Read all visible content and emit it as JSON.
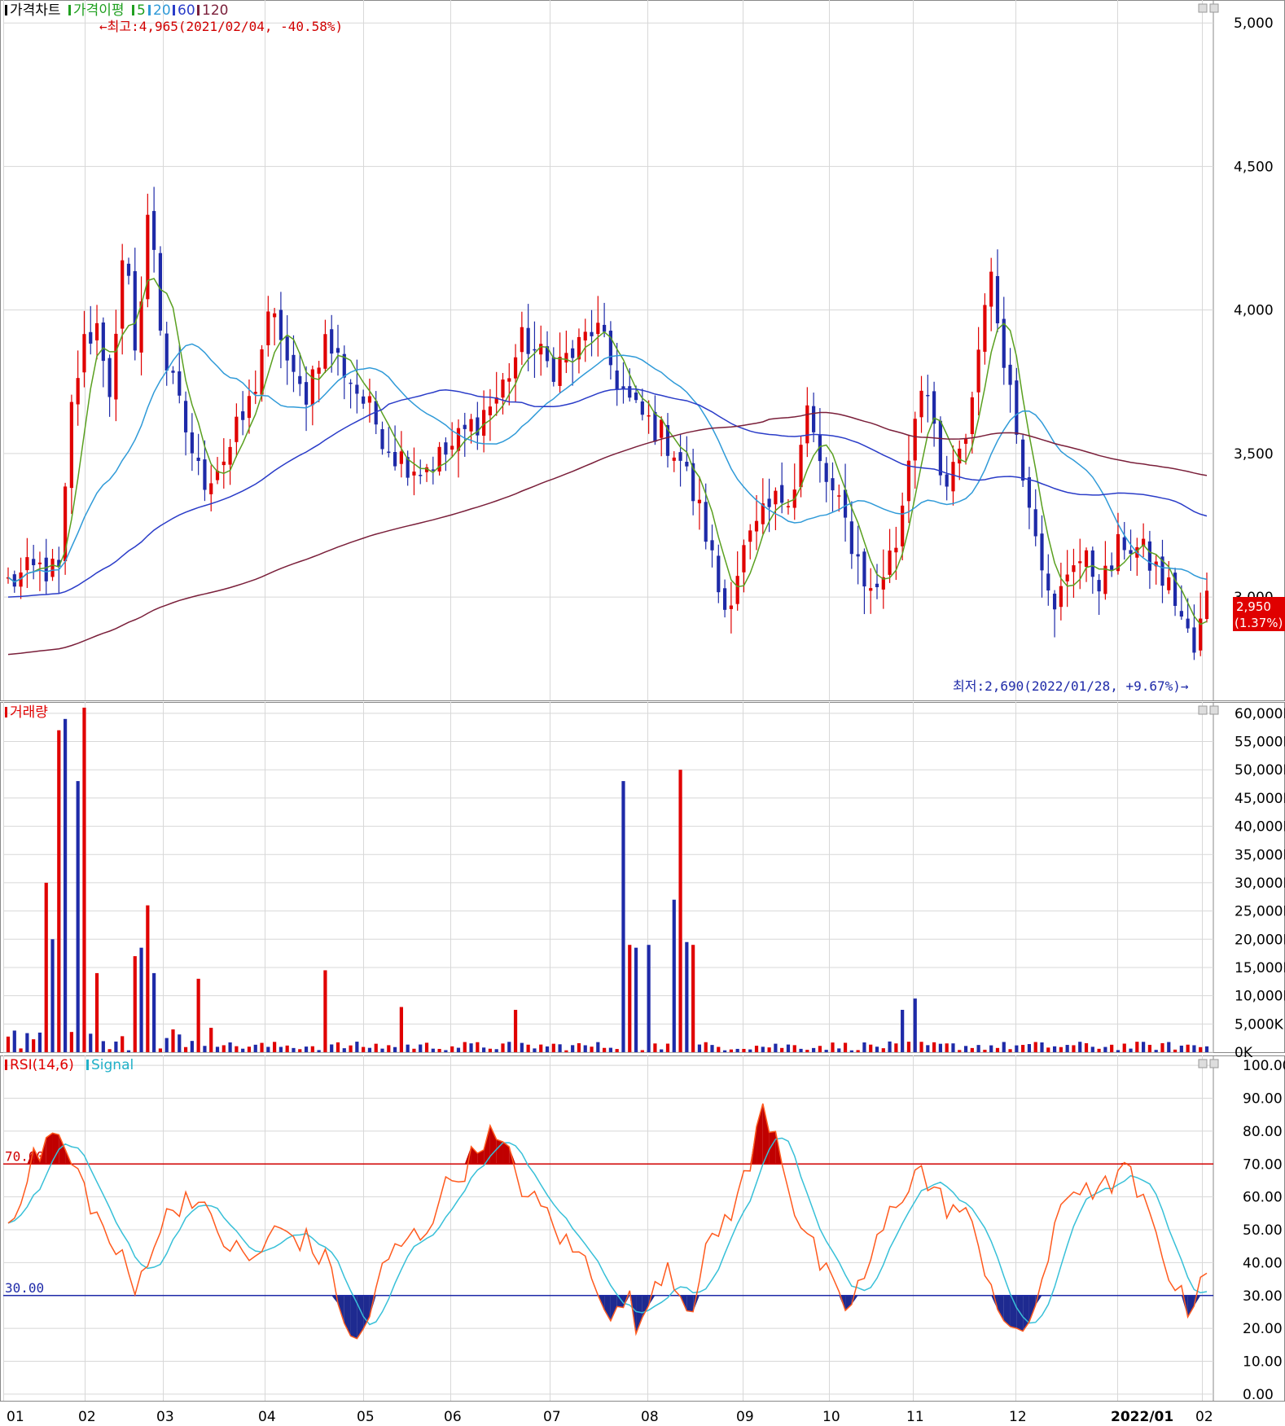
{
  "colors": {
    "up": "#e00000",
    "down": "#1e2aa8",
    "ma5": "#5aa020",
    "ma20": "#2f9ad8",
    "ma60": "#2a3cc8",
    "ma120": "#7a1f3a",
    "rsi": "#ff5a1e",
    "signal": "#38c0d8",
    "grid": "#d8d8d8"
  },
  "months": [
    "01",
    "02",
    "03",
    "04",
    "05",
    "06",
    "07",
    "08",
    "09",
    "10",
    "11",
    "12",
    "2022/01",
    "02"
  ],
  "legends": {
    "price": [
      {
        "label": "가격차트",
        "color": "#000000"
      },
      {
        "label": "가격이평",
        "color": "#20a020"
      },
      {
        "label": "5",
        "color": "#20a020"
      },
      {
        "label": "20",
        "color": "#2f9ad8"
      },
      {
        "label": "60",
        "color": "#2a3cc8"
      },
      {
        "label": "120",
        "color": "#7a1f3a"
      }
    ],
    "volume": [
      {
        "label": "거래량",
        "color": "#e00000"
      }
    ],
    "rsi": [
      {
        "label": "RSI(14,6)",
        "color": "#e00000"
      },
      {
        "label": "Signal",
        "color": "#20b0c8"
      }
    ]
  },
  "price_axis": [
    "5,000",
    "4,500",
    "4,000",
    "3,500",
    "3,000"
  ],
  "volume_axis": [
    "60,000K",
    "55,000K",
    "50,000K",
    "45,000K",
    "40,000K",
    "35,000K",
    "30,000K",
    "25,000K",
    "20,000K",
    "15,000K",
    "10,000K",
    "5,000K",
    "0K"
  ],
  "rsi_axis": [
    "100.00",
    "90.00",
    "80.00",
    "70.00",
    "60.00",
    "50.00",
    "40.00",
    "30.00",
    "20.00",
    "10.00",
    "0.00"
  ],
  "annotations": {
    "high": "←최고:4,965(2021/02/04, -40.58%)",
    "low": "최저:2,690(2022/01/28, +9.67%)→",
    "rsi_upper": "70.00",
    "rsi_lower": "30.00",
    "last_price": "2,950",
    "last_change": "(1.37%)"
  },
  "chart_data": [
    {
      "type": "candlestick",
      "title": "가격차트",
      "series_names": [
        "5",
        "20",
        "60",
        "120"
      ],
      "ylim": [
        2640,
        5080
      ],
      "max": {
        "value": 4965,
        "date": "2021/02/04"
      },
      "min": {
        "value": 2690,
        "date": "2022/01/28"
      },
      "last": 2950,
      "anchors": [
        [
          0,
          3050
        ],
        [
          5,
          3100
        ],
        [
          8,
          3080
        ],
        [
          10,
          3700
        ],
        [
          12,
          3900
        ],
        [
          14,
          3950
        ],
        [
          16,
          3700
        ],
        [
          18,
          4200
        ],
        [
          20,
          3850
        ],
        [
          22,
          4400
        ],
        [
          24,
          3850
        ],
        [
          26,
          3700
        ],
        [
          28,
          3550
        ],
        [
          30,
          3400
        ],
        [
          34,
          3500
        ],
        [
          38,
          3700
        ],
        [
          40,
          3950
        ],
        [
          42,
          3950
        ],
        [
          44,
          3750
        ],
        [
          46,
          3700
        ],
        [
          49,
          3900
        ],
        [
          52,
          3800
        ],
        [
          56,
          3650
        ],
        [
          60,
          3500
        ],
        [
          64,
          3450
        ],
        [
          68,
          3500
        ],
        [
          72,
          3600
        ],
        [
          76,
          3700
        ],
        [
          80,
          3900
        ],
        [
          84,
          3800
        ],
        [
          88,
          3850
        ],
        [
          91,
          3950
        ],
        [
          94,
          3780
        ],
        [
          97,
          3650
        ],
        [
          100,
          3600
        ],
        [
          104,
          3500
        ],
        [
          108,
          3250
        ],
        [
          111,
          2950
        ],
        [
          114,
          3150
        ],
        [
          118,
          3300
        ],
        [
          122,
          3400
        ],
        [
          124,
          3650
        ],
        [
          126,
          3450
        ],
        [
          130,
          3250
        ],
        [
          134,
          3000
        ],
        [
          138,
          3200
        ],
        [
          140,
          3550
        ],
        [
          142,
          3800
        ],
        [
          145,
          3350
        ],
        [
          148,
          3500
        ],
        [
          150,
          3750
        ],
        [
          152,
          4150
        ],
        [
          155,
          3800
        ],
        [
          157,
          3500
        ],
        [
          160,
          3200
        ],
        [
          162,
          2900
        ],
        [
          165,
          3150
        ],
        [
          168,
          3100
        ],
        [
          170,
          3050
        ],
        [
          173,
          3200
        ],
        [
          176,
          3150
        ],
        [
          178,
          3100
        ],
        [
          181,
          3000
        ],
        [
          184,
          2800
        ],
        [
          186,
          3000
        ]
      ]
    },
    {
      "type": "bar",
      "title": "거래량",
      "ylim": [
        0,
        60000
      ],
      "unit": "K",
      "spikes": [
        [
          6,
          30000
        ],
        [
          7,
          20000
        ],
        [
          8,
          57000
        ],
        [
          9,
          59000
        ],
        [
          11,
          48000
        ],
        [
          12,
          61000
        ],
        [
          14,
          14000
        ],
        [
          20,
          17000
        ],
        [
          21,
          18500
        ],
        [
          22,
          26000
        ],
        [
          23,
          14000
        ],
        [
          30,
          13000
        ],
        [
          49,
          14500
        ],
        [
          61,
          8000
        ],
        [
          79,
          7500
        ],
        [
          95,
          48000
        ],
        [
          96,
          19000
        ],
        [
          97,
          18500
        ],
        [
          99,
          19000
        ],
        [
          103,
          27000
        ],
        [
          104,
          50000
        ],
        [
          105,
          19500
        ],
        [
          106,
          19000
        ],
        [
          139,
          7500
        ],
        [
          141,
          9500
        ]
      ]
    },
    {
      "type": "line",
      "title": "RSI(14,6)",
      "series_names": [
        "RSI(14,6)",
        "Signal"
      ],
      "ylim": [
        0,
        100
      ],
      "levels": [
        70,
        30
      ],
      "anchors": [
        [
          0,
          52
        ],
        [
          3,
          68
        ],
        [
          6,
          78
        ],
        [
          7,
          80
        ],
        [
          8,
          75
        ],
        [
          10,
          68
        ],
        [
          12,
          60
        ],
        [
          14,
          50
        ],
        [
          17,
          40
        ],
        [
          19,
          30
        ],
        [
          21,
          45
        ],
        [
          24,
          55
        ],
        [
          27,
          62
        ],
        [
          30,
          52
        ],
        [
          33,
          45
        ],
        [
          36,
          40
        ],
        [
          40,
          50
        ],
        [
          44,
          47
        ],
        [
          48,
          38
        ],
        [
          51,
          14
        ],
        [
          53,
          20
        ],
        [
          55,
          35
        ],
        [
          58,
          45
        ],
        [
          62,
          50
        ],
        [
          64,
          60
        ],
        [
          66,
          65
        ],
        [
          69,
          72
        ],
        [
          71,
          80
        ],
        [
          73,
          75
        ],
        [
          75,
          70
        ],
        [
          77,
          60
        ],
        [
          80,
          55
        ],
        [
          83,
          45
        ],
        [
          86,
          40
        ],
        [
          88,
          32
        ],
        [
          90,
          22
        ],
        [
          92,
          30
        ],
        [
          94,
          18
        ],
        [
          96,
          35
        ],
        [
          98,
          40
        ],
        [
          100,
          30
        ],
        [
          102,
          28
        ],
        [
          104,
          45
        ],
        [
          107,
          55
        ],
        [
          110,
          68
        ],
        [
          112,
          87
        ],
        [
          114,
          80
        ],
        [
          117,
          55
        ],
        [
          120,
          42
        ],
        [
          124,
          25
        ],
        [
          127,
          35
        ],
        [
          131,
          55
        ],
        [
          133,
          62
        ],
        [
          135,
          70
        ],
        [
          137,
          62
        ],
        [
          139,
          58
        ],
        [
          142,
          55
        ],
        [
          145,
          40
        ],
        [
          148,
          22
        ],
        [
          150,
          15
        ],
        [
          152,
          25
        ],
        [
          155,
          45
        ],
        [
          157,
          60
        ],
        [
          160,
          65
        ],
        [
          162,
          60
        ],
        [
          165,
          68
        ],
        [
          167,
          65
        ],
        [
          169,
          55
        ],
        [
          172,
          40
        ],
        [
          174,
          30
        ],
        [
          175,
          25
        ],
        [
          177,
          35
        ],
        [
          178,
          40
        ]
      ]
    }
  ]
}
